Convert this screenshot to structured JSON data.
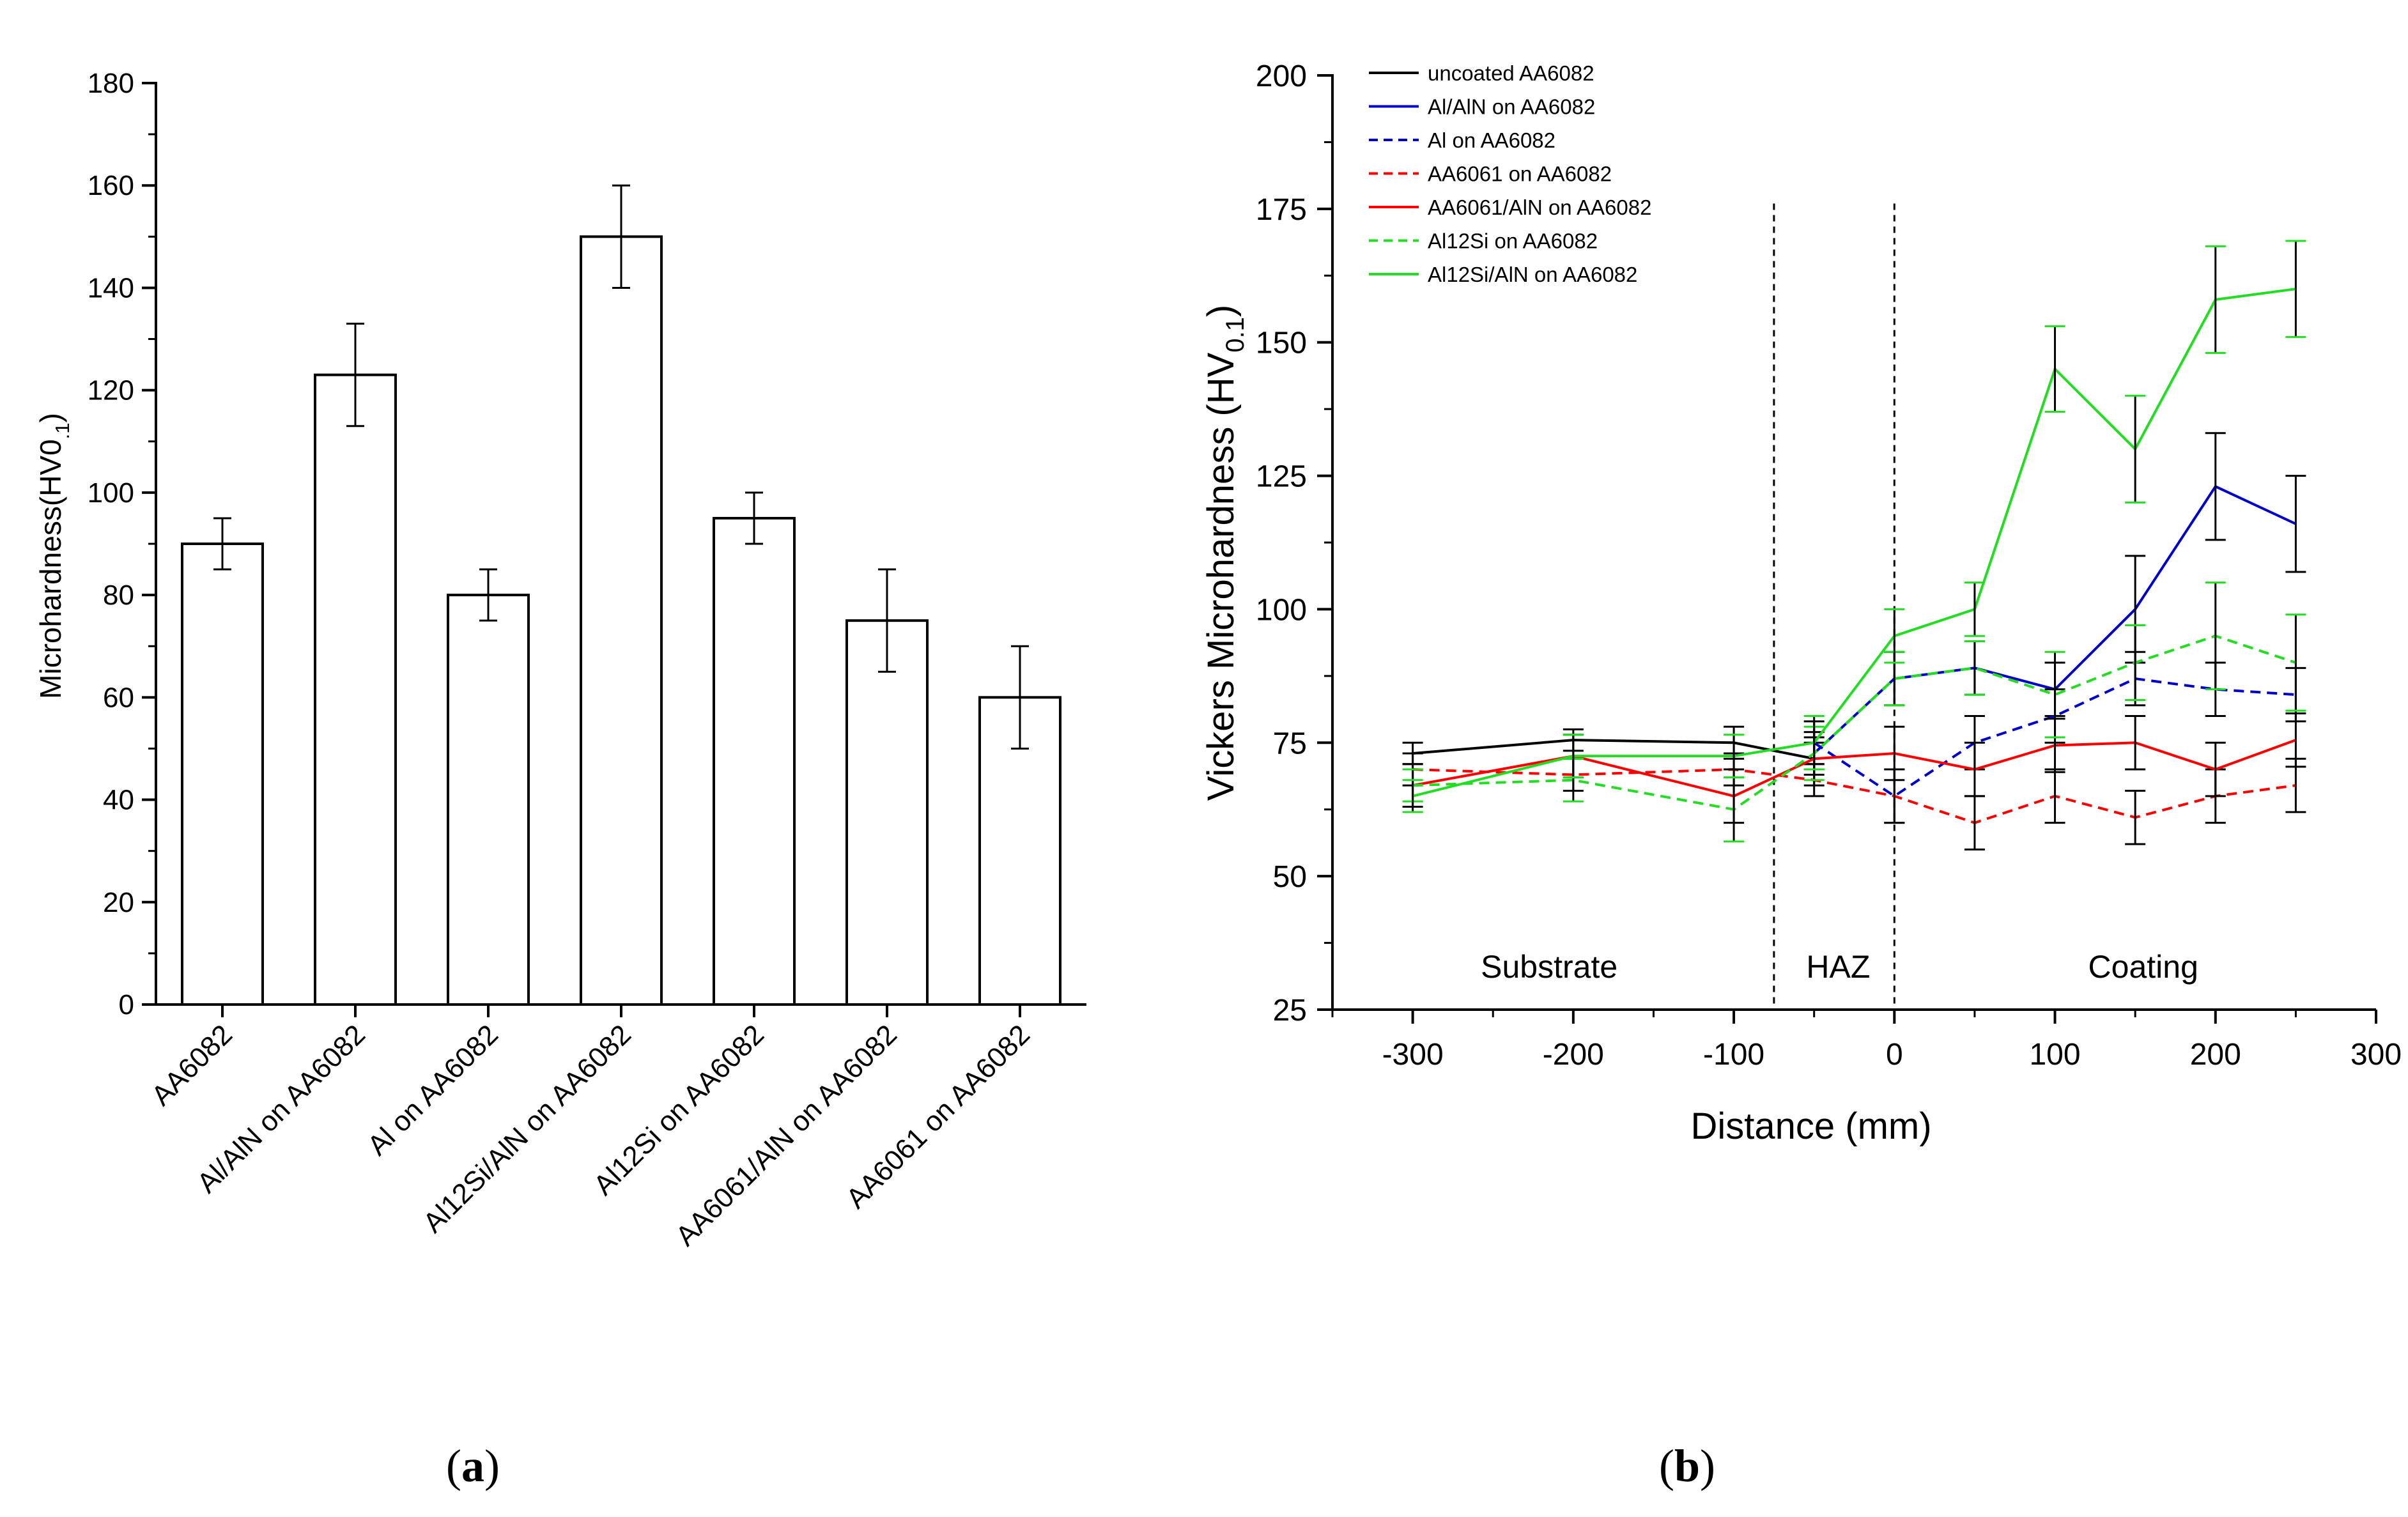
{
  "chart_data": [
    {
      "type": "bar",
      "panel_label": "a",
      "categories": [
        "AA6082",
        "Al/AlN on AA6082",
        "Al on AA6082",
        "Al12Si/AlN on AA6082",
        "Al12Si on AA6082",
        "AA6061/AlN on AA6082",
        "AA6061 on AA6082"
      ],
      "values": [
        90,
        123,
        80,
        150,
        95,
        75,
        60
      ],
      "errors": [
        5,
        10,
        5,
        10,
        5,
        10,
        10
      ],
      "ylabel_main": "Microhardness(HV0",
      "ylabel_sub": ".1",
      "ylabel_close": ")",
      "ylim": [
        0,
        180
      ],
      "yticks": [
        0,
        20,
        40,
        60,
        80,
        100,
        120,
        140,
        160,
        180
      ],
      "grid": false,
      "bar_fill": "#ffffff",
      "bar_stroke": "#000000"
    },
    {
      "type": "line",
      "panel_label": "b",
      "xlabel": "Distance (mm)",
      "ylabel_main": "Vickers Microhardness (HV",
      "ylabel_sub": "0.1",
      "ylabel_close": ")",
      "xlim": [
        -350,
        300
      ],
      "ylim": [
        25,
        200
      ],
      "xticks": [
        -300,
        -200,
        -100,
        0,
        100,
        200,
        300
      ],
      "yticks": [
        25,
        50,
        75,
        100,
        125,
        150,
        175,
        200
      ],
      "grid": false,
      "legend_position": "top-left",
      "region_dividers": [
        -75,
        0
      ],
      "regions": [
        {
          "label": "Substrate",
          "x": -215
        },
        {
          "label": "HAZ",
          "x": -35
        },
        {
          "label": "Coating",
          "x": 155
        }
      ],
      "series": [
        {
          "name": "uncoated AA6082",
          "color": "#000000",
          "dash": "solid",
          "x": [
            -300,
            -200,
            -100,
            -50
          ],
          "y": [
            73,
            75.5,
            75,
            72
          ],
          "err": [
            2,
            2,
            3,
            3
          ]
        },
        {
          "name": "Al/AlN on AA6082",
          "color": "#0000cc",
          "dash": "solid",
          "x": [
            -50,
            0,
            50,
            100,
            150,
            200,
            250
          ],
          "y": [
            73,
            87,
            89,
            85,
            100,
            123,
            116
          ],
          "err": [
            3,
            5,
            5,
            5,
            10,
            10,
            9
          ]
        },
        {
          "name": "Al on AA6082",
          "color": "#0000cc",
          "dash": "dashed",
          "x": [
            -50,
            0,
            50,
            100,
            150,
            200,
            250
          ],
          "y": [
            75,
            65,
            75,
            80,
            87,
            85,
            84
          ],
          "err": [
            4,
            5,
            5,
            5,
            5,
            5,
            5
          ]
        },
        {
          "name": "AA6061 on AA6082",
          "color": "#ff0000",
          "dash": "dashed",
          "x": [
            -300,
            -200,
            -100,
            -50,
            0,
            50,
            100,
            150,
            200,
            250
          ],
          "y": [
            70,
            69,
            70,
            68,
            65,
            60,
            65,
            61,
            65,
            67
          ],
          "err": [
            3,
            3,
            3,
            3,
            5,
            5,
            5,
            5,
            5,
            5
          ]
        },
        {
          "name": "AA6061/AlN on AA6082",
          "color": "#ff0000",
          "dash": "solid",
          "x": [
            -300,
            -200,
            -100,
            -50,
            0,
            50,
            100,
            150,
            200,
            250
          ],
          "y": [
            67,
            72.5,
            65,
            72,
            73,
            70,
            74.5,
            75,
            70,
            75.5
          ],
          "err": [
            4,
            4,
            5,
            5,
            5,
            5,
            5,
            5,
            5,
            5
          ]
        },
        {
          "name": "Al12Si on AA6082",
          "color": "#22dd22",
          "dash": "dashed",
          "x": [
            -300,
            -200,
            -100,
            -50,
            0,
            50,
            100,
            150,
            200,
            250
          ],
          "y": [
            67,
            68,
            62.5,
            73,
            87,
            89,
            84,
            90,
            95,
            90
          ],
          "err": [
            3,
            4,
            6,
            5,
            5,
            5,
            8,
            7,
            10,
            9
          ]
        },
        {
          "name": "Al12Si/AlN on AA6082",
          "color": "#22dd22",
          "dash": "solid",
          "x": [
            -300,
            -200,
            -100,
            -50,
            0,
            50,
            100,
            150,
            200,
            250
          ],
          "y": [
            65,
            72.5,
            72.5,
            75,
            95,
            100,
            145,
            130,
            158,
            160
          ],
          "err": [
            3,
            4,
            4,
            5,
            5,
            5,
            8,
            10,
            10,
            9
          ]
        }
      ]
    }
  ]
}
